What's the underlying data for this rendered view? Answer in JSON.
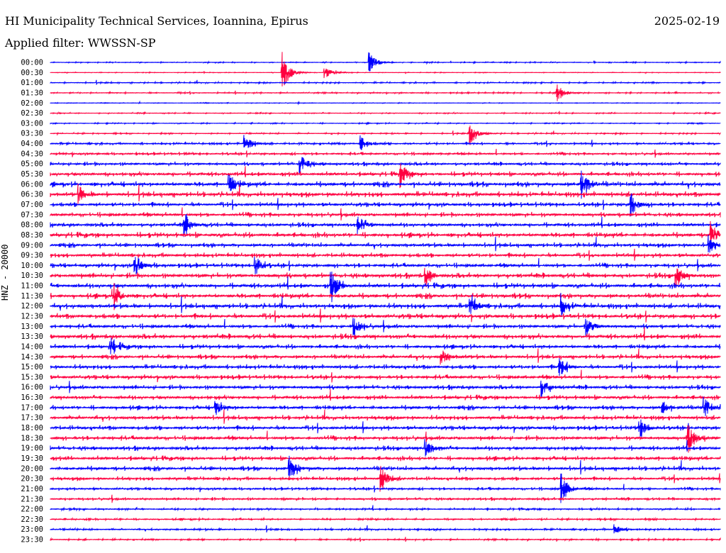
{
  "header": {
    "title": "HI Municipality Technical Services, Ioannina, Epirus",
    "date": "2025-02-19",
    "filter": "Applied filter: WWSSN-SP"
  },
  "chart_data": {
    "type": "line",
    "title": "HI Municipality Technical Services, Ioannina, Epirus",
    "ylabel": "HNZ - 20000",
    "minutes_per_row": 30,
    "row_labels": [
      "00:00",
      "00:30",
      "01:00",
      "01:30",
      "02:00",
      "02:30",
      "03:00",
      "03:30",
      "04:00",
      "04:30",
      "05:00",
      "05:30",
      "06:00",
      "06:30",
      "07:00",
      "07:30",
      "08:00",
      "08:30",
      "09:00",
      "09:30",
      "10:00",
      "10:30",
      "11:00",
      "11:30",
      "12:00",
      "12:30",
      "13:00",
      "13:30",
      "14:00",
      "14:30",
      "15:00",
      "15:30",
      "16:00",
      "16:30",
      "17:00",
      "17:30",
      "18:00",
      "18:30",
      "19:00",
      "19:30",
      "20:00",
      "20:30",
      "21:00",
      "21:30",
      "22:00",
      "22:30",
      "23:00",
      "23:30"
    ],
    "colors": [
      "#0000ff",
      "#ff0040"
    ],
    "noise_level": [
      0.08,
      0.05,
      0.1,
      0.1,
      0.05,
      0.08,
      0.08,
      0.1,
      0.18,
      0.2,
      0.25,
      0.3,
      0.35,
      0.35,
      0.3,
      0.3,
      0.3,
      0.35,
      0.3,
      0.3,
      0.3,
      0.35,
      0.35,
      0.35,
      0.35,
      0.35,
      0.3,
      0.35,
      0.3,
      0.3,
      0.3,
      0.3,
      0.3,
      0.3,
      0.3,
      0.3,
      0.3,
      0.3,
      0.3,
      0.3,
      0.3,
      0.25,
      0.2,
      0.2,
      0.15,
      0.15,
      0.15,
      0.12
    ],
    "events": [
      {
        "row": 0,
        "minute": 14.3,
        "amp": 1.0
      },
      {
        "row": 1,
        "minute": 10.4,
        "amp": 2.0
      },
      {
        "row": 1,
        "minute": 12.3,
        "amp": 0.6
      },
      {
        "row": 3,
        "minute": 22.7,
        "amp": 1.0
      },
      {
        "row": 7,
        "minute": 18.8,
        "amp": 1.2
      },
      {
        "row": 8,
        "minute": 8.7,
        "amp": 1.0
      },
      {
        "row": 8,
        "minute": 13.9,
        "amp": 0.8
      },
      {
        "row": 10,
        "minute": 11.2,
        "amp": 1.0
      },
      {
        "row": 11,
        "minute": 15.7,
        "amp": 1.2
      },
      {
        "row": 12,
        "minute": 8.0,
        "amp": 1.0
      },
      {
        "row": 12,
        "minute": 23.8,
        "amp": 2.0
      },
      {
        "row": 13,
        "minute": 1.3,
        "amp": 0.8
      },
      {
        "row": 14,
        "minute": 26.0,
        "amp": 1.2
      },
      {
        "row": 16,
        "minute": 6.0,
        "amp": 1.2
      },
      {
        "row": 16,
        "minute": 13.8,
        "amp": 1.0
      },
      {
        "row": 17,
        "minute": 29.6,
        "amp": 1.2
      },
      {
        "row": 18,
        "minute": 29.5,
        "amp": 0.8
      },
      {
        "row": 20,
        "minute": 3.8,
        "amp": 1.2
      },
      {
        "row": 20,
        "minute": 9.2,
        "amp": 1.0
      },
      {
        "row": 21,
        "minute": 16.8,
        "amp": 1.0
      },
      {
        "row": 21,
        "minute": 28.0,
        "amp": 1.4
      },
      {
        "row": 22,
        "minute": 12.6,
        "amp": 1.5
      },
      {
        "row": 23,
        "minute": 2.8,
        "amp": 1.5
      },
      {
        "row": 24,
        "minute": 18.8,
        "amp": 1.2
      },
      {
        "row": 24,
        "minute": 22.9,
        "amp": 1.0
      },
      {
        "row": 26,
        "minute": 13.6,
        "amp": 1.0
      },
      {
        "row": 26,
        "minute": 24.0,
        "amp": 1.0
      },
      {
        "row": 28,
        "minute": 2.7,
        "amp": 1.0
      },
      {
        "row": 29,
        "minute": 17.5,
        "amp": 0.8
      },
      {
        "row": 30,
        "minute": 22.8,
        "amp": 1.0
      },
      {
        "row": 32,
        "minute": 22.0,
        "amp": 1.0
      },
      {
        "row": 34,
        "minute": 7.4,
        "amp": 0.8
      },
      {
        "row": 34,
        "minute": 27.4,
        "amp": 0.8
      },
      {
        "row": 34,
        "minute": 29.3,
        "amp": 1.0
      },
      {
        "row": 36,
        "minute": 26.4,
        "amp": 1.0
      },
      {
        "row": 37,
        "minute": 28.6,
        "amp": 1.4
      },
      {
        "row": 38,
        "minute": 16.8,
        "amp": 1.0
      },
      {
        "row": 40,
        "minute": 10.7,
        "amp": 1.2
      },
      {
        "row": 41,
        "minute": 14.8,
        "amp": 1.4
      },
      {
        "row": 42,
        "minute": 22.9,
        "amp": 1.5
      },
      {
        "row": 46,
        "minute": 25.3,
        "amp": 0.5
      }
    ]
  }
}
